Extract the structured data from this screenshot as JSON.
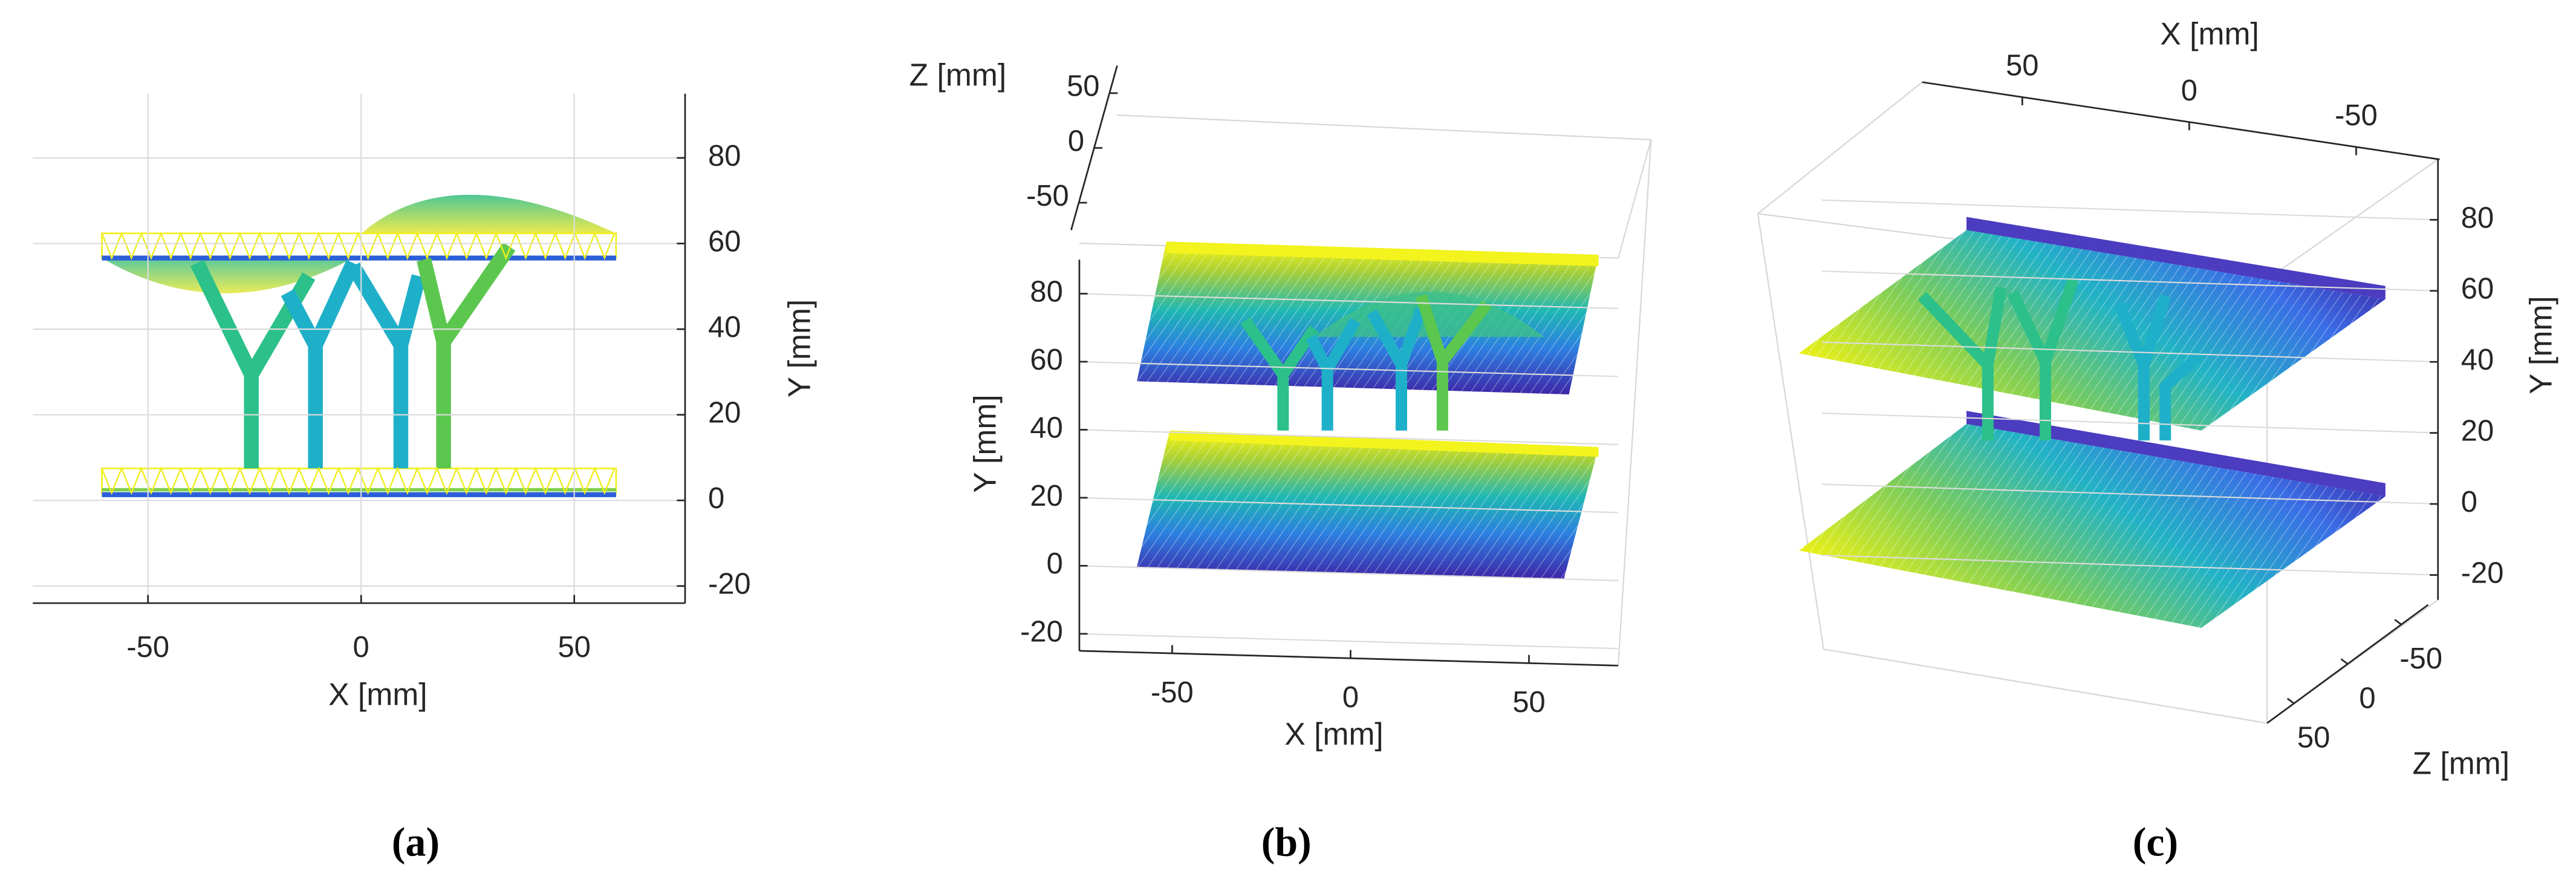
{
  "chart_data": [
    {
      "type": "surface3d",
      "label": "(a)",
      "xlabel": "X [mm]",
      "ylabel": "Y [mm]",
      "xlim": [
        -77,
        76
      ],
      "xticks": [
        -50,
        0,
        50
      ],
      "ylim": [
        -24,
        95
      ],
      "yticks": [
        -20,
        0,
        20,
        40,
        60,
        80
      ],
      "grid": true
    },
    {
      "type": "surface3d",
      "label": "(b)",
      "xlabel": "X [mm]",
      "ylabel": "Y [mm]",
      "zlabel": "Z [mm]",
      "xlim": [
        -76,
        75
      ],
      "xticks": [
        -50,
        0,
        50
      ],
      "ylim": [
        -25,
        90
      ],
      "yticks": [
        -20,
        0,
        20,
        40,
        60,
        80
      ],
      "zlim": [
        -75,
        75
      ],
      "zticks": [
        -50,
        0,
        50
      ],
      "grid": true
    },
    {
      "type": "surface3d",
      "label": "(c)",
      "xlabel": "X [mm]",
      "ylabel": "Y [mm]",
      "zlabel": "Z [mm]",
      "xlim": [
        80,
        -75
      ],
      "xticks": [
        50,
        0,
        -50
      ],
      "ylim": [
        -27,
        97
      ],
      "yticks": [
        -20,
        0,
        20,
        40,
        60,
        80
      ],
      "zlim": [
        75,
        -75
      ],
      "zticks": [
        50,
        0,
        -50
      ],
      "grid": true
    }
  ]
}
